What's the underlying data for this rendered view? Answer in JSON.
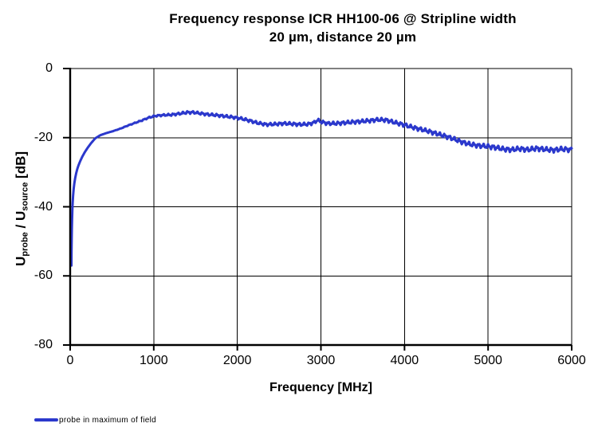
{
  "page": {
    "background": "#ffffff"
  },
  "chart_data": {
    "type": "line",
    "title": "Frequency response ICR HH100-06 @ Stripline width 20 µm, distance 20 µm",
    "title_lines": [
      "Frequency response ICR HH100-06 @ Stripline  width",
      "20 µm, distance 20 µm"
    ],
    "xlabel": "Frequency [MHz]",
    "ylabel": "U_probe / U_source [dB]",
    "ylabel_parts": {
      "u1": "U",
      "sub1": "probe",
      "mid": " / U",
      "sub2": "source",
      "unit": " [dB]"
    },
    "xlim": [
      0,
      6000
    ],
    "ylim": [
      -80,
      0
    ],
    "x_ticks": [
      0,
      1000,
      2000,
      3000,
      4000,
      5000,
      6000
    ],
    "x_tick_labels": [
      "0",
      "1000",
      "2000",
      "3000",
      "4000",
      "5000",
      "6000"
    ],
    "y_ticks": [
      0,
      -20,
      -40,
      -60,
      -80
    ],
    "y_tick_labels": [
      "0",
      "-20",
      "-40",
      "-60",
      "-80"
    ],
    "grid": true,
    "gridline_color": "#000000",
    "axis_color": "#000000",
    "legend_position": "bottom-left-outside",
    "legend": [
      {
        "label": "probe in maximum of field",
        "color": "#2b38cc"
      }
    ],
    "series": [
      {
        "name": "probe in maximum of field",
        "color": "#2b38cc",
        "line_width": 3,
        "anchor_points": [
          [
            15,
            -57
          ],
          [
            16,
            -53
          ],
          [
            18,
            -49.5
          ],
          [
            20,
            -46.5
          ],
          [
            23,
            -43.5
          ],
          [
            26,
            -41
          ],
          [
            30,
            -38.8
          ],
          [
            35,
            -36.8
          ],
          [
            42,
            -34.8
          ],
          [
            50,
            -33.2
          ],
          [
            60,
            -31.7
          ],
          [
            72,
            -30.3
          ],
          [
            86,
            -29
          ],
          [
            100,
            -28
          ],
          [
            120,
            -26.8
          ],
          [
            145,
            -25.5
          ],
          [
            175,
            -24.2
          ],
          [
            210,
            -22.9
          ],
          [
            250,
            -21.6
          ],
          [
            300,
            -20.2
          ],
          [
            360,
            -19.3
          ],
          [
            430,
            -18.7
          ],
          [
            515,
            -18.1
          ],
          [
            600,
            -17.4
          ],
          [
            690,
            -16.5
          ],
          [
            780,
            -15.7
          ],
          [
            860,
            -15.0
          ],
          [
            940,
            -14.2
          ],
          [
            1020,
            -13.7
          ],
          [
            1100,
            -13.5
          ],
          [
            1200,
            -13.4
          ],
          [
            1300,
            -13.1
          ],
          [
            1400,
            -12.7
          ],
          [
            1480,
            -12.7
          ],
          [
            1560,
            -13.0
          ],
          [
            1650,
            -13.3
          ],
          [
            1750,
            -13.5
          ],
          [
            1850,
            -13.8
          ],
          [
            1950,
            -14.1
          ],
          [
            2050,
            -14.5
          ],
          [
            2150,
            -15.1
          ],
          [
            2250,
            -15.8
          ],
          [
            2350,
            -16.2
          ],
          [
            2450,
            -16.1
          ],
          [
            2550,
            -15.9
          ],
          [
            2650,
            -16.0
          ],
          [
            2750,
            -16.2
          ],
          [
            2850,
            -16.1
          ],
          [
            2920,
            -15.6
          ],
          [
            2960,
            -14.9
          ],
          [
            3000,
            -15.4
          ],
          [
            3080,
            -15.9
          ],
          [
            3180,
            -15.9
          ],
          [
            3280,
            -15.7
          ],
          [
            3380,
            -15.5
          ],
          [
            3480,
            -15.3
          ],
          [
            3580,
            -15.1
          ],
          [
            3680,
            -14.8
          ],
          [
            3780,
            -14.9
          ],
          [
            3880,
            -15.6
          ],
          [
            3980,
            -16.2
          ],
          [
            4080,
            -16.9
          ],
          [
            4180,
            -17.5
          ],
          [
            4280,
            -18.1
          ],
          [
            4380,
            -18.8
          ],
          [
            4480,
            -19.5
          ],
          [
            4580,
            -20.3
          ],
          [
            4680,
            -21.2
          ],
          [
            4780,
            -21.9
          ],
          [
            4880,
            -22.3
          ],
          [
            4980,
            -22.5
          ],
          [
            5080,
            -22.8
          ],
          [
            5180,
            -23.3
          ],
          [
            5280,
            -23.5
          ],
          [
            5380,
            -23.2
          ],
          [
            5480,
            -23.5
          ],
          [
            5580,
            -23.1
          ],
          [
            5680,
            -23.4
          ],
          [
            5780,
            -23.6
          ],
          [
            5880,
            -23.3
          ],
          [
            6000,
            -23.5
          ]
        ],
        "ripple": {
          "fade_in_start": 450,
          "fade_in_len": 900,
          "base_amp_db": 0.42,
          "grow_start": 1600,
          "grow_len": 3800,
          "max_amp_db": 0.75,
          "period1_mhz": 58,
          "period2_mhz": 25
        }
      }
    ]
  }
}
